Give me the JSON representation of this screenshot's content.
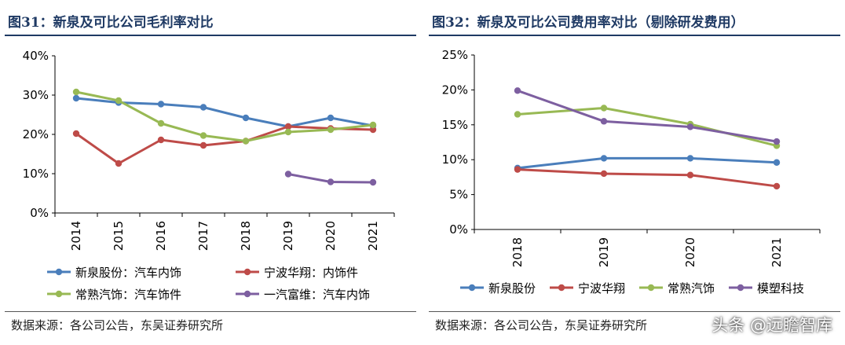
{
  "chart_data": [
    {
      "type": "line",
      "title": "图31：新泉及可比公司毛利率对比",
      "source": "数据来源：各公司公告，东吴证券研究所",
      "x": [
        "2014",
        "2015",
        "2016",
        "2017",
        "2018",
        "2019",
        "2020",
        "2021"
      ],
      "y_ticks": [
        "0%",
        "10%",
        "20%",
        "30%",
        "40%"
      ],
      "ylim": [
        0,
        40
      ],
      "series": [
        {
          "name": "新泉股份：汽车内饰",
          "color": "#4a7ebb",
          "values": [
            29.2,
            28.1,
            27.7,
            26.9,
            24.2,
            22.0,
            24.2,
            22.2
          ]
        },
        {
          "name": "宁波华翔：内饰件",
          "color": "#be4b48",
          "values": [
            20.2,
            12.6,
            18.6,
            17.2,
            18.3,
            22.0,
            21.5,
            21.2
          ]
        },
        {
          "name": "常熟汽饰：汽车饰件",
          "color": "#98b954",
          "values": [
            30.8,
            28.6,
            22.8,
            19.7,
            18.3,
            20.6,
            21.2,
            22.4
          ]
        },
        {
          "name": "一汽富维：汽车内饰",
          "color": "#7d5fa0",
          "values": [
            null,
            null,
            null,
            null,
            null,
            9.9,
            7.9,
            7.8
          ]
        }
      ],
      "legend": "bottom, 2 columns"
    },
    {
      "type": "line",
      "title": "图32：新泉及可比公司费用率对比（剔除研发费用）",
      "source": "数据来源：各公司公告，东吴证券研究所",
      "x": [
        "2018",
        "2019",
        "2020",
        "2021"
      ],
      "y_ticks": [
        "0%",
        "5%",
        "10%",
        "15%",
        "20%",
        "25%"
      ],
      "ylim": [
        0,
        25
      ],
      "series": [
        {
          "name": "新泉股份",
          "color": "#4a7ebb",
          "values": [
            8.8,
            10.2,
            10.2,
            9.6
          ]
        },
        {
          "name": "宁波华翔",
          "color": "#be4b48",
          "values": [
            8.6,
            8.0,
            7.8,
            6.2
          ]
        },
        {
          "name": "常熟汽饰",
          "color": "#98b954",
          "values": [
            16.5,
            17.4,
            15.1,
            12.0
          ]
        },
        {
          "name": "模塑科技",
          "color": "#7d5fa0",
          "values": [
            19.9,
            15.5,
            14.7,
            12.6
          ]
        }
      ],
      "legend": "bottom, 1 row"
    }
  ],
  "watermark": "头条 @远瞻智库"
}
